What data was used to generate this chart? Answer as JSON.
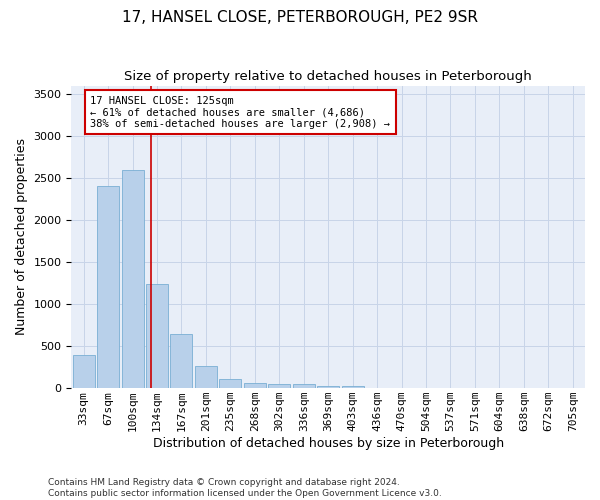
{
  "title": "17, HANSEL CLOSE, PETERBOROUGH, PE2 9SR",
  "subtitle": "Size of property relative to detached houses in Peterborough",
  "xlabel": "Distribution of detached houses by size in Peterborough",
  "ylabel": "Number of detached properties",
  "categories": [
    "33sqm",
    "67sqm",
    "100sqm",
    "134sqm",
    "167sqm",
    "201sqm",
    "235sqm",
    "268sqm",
    "302sqm",
    "336sqm",
    "369sqm",
    "403sqm",
    "436sqm",
    "470sqm",
    "504sqm",
    "537sqm",
    "571sqm",
    "604sqm",
    "638sqm",
    "672sqm",
    "705sqm"
  ],
  "values": [
    390,
    2400,
    2600,
    1240,
    640,
    260,
    105,
    60,
    55,
    45,
    30,
    20,
    0,
    0,
    0,
    0,
    0,
    0,
    0,
    0,
    0
  ],
  "bar_color": "#b8d0ea",
  "bar_edge_color": "#7aafd4",
  "grid_color": "#c8d4e8",
  "background_color": "#e8eef8",
  "vline_color": "#cc0000",
  "annotation_text": "17 HANSEL CLOSE: 125sqm\n← 61% of detached houses are smaller (4,686)\n38% of semi-detached houses are larger (2,908) →",
  "annotation_box_color": "#cc0000",
  "ylim": [
    0,
    3600
  ],
  "footnote": "Contains HM Land Registry data © Crown copyright and database right 2024.\nContains public sector information licensed under the Open Government Licence v3.0.",
  "title_fontsize": 11,
  "subtitle_fontsize": 9.5,
  "xlabel_fontsize": 9,
  "ylabel_fontsize": 9,
  "tick_fontsize": 8,
  "footnote_fontsize": 6.5
}
